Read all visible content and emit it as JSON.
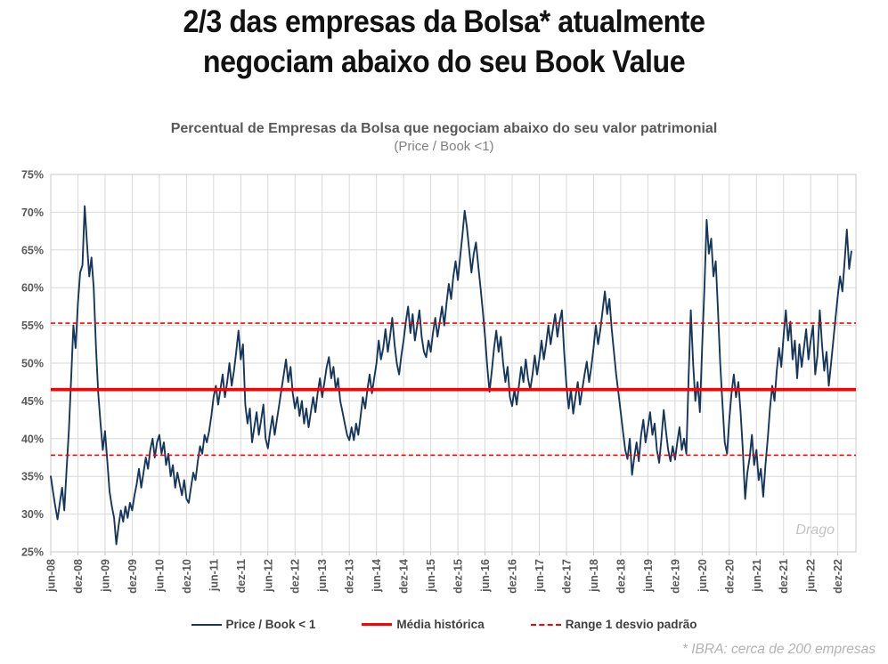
{
  "slide": {
    "title_line1": "2/3 das empresas da Bolsa* atualmente",
    "title_line2": "negociam abaixo do seu Book Value",
    "watermark": "Drago",
    "footnote": "* IBRA: cerca de 200 empresas"
  },
  "chart_data": {
    "type": "line",
    "title": "Percentual de Empresas da Bolsa que negociam abaixo do seu valor patrimonial",
    "subtitle": "(Price / Book <1)",
    "grid": true,
    "legend_position": "bottom",
    "y_axis": {
      "min": 25,
      "max": 75,
      "step": 5,
      "tick_labels": [
        "25%",
        "30%",
        "35%",
        "40%",
        "45%",
        "50%",
        "55%",
        "60%",
        "65%",
        "70%",
        "75%"
      ]
    },
    "x_axis": {
      "months_per_tick": 6,
      "total_months": 178,
      "tick_labels": [
        "jun-08",
        "dez-08",
        "jun-09",
        "dez-09",
        "jun-10",
        "dez-10",
        "jun-11",
        "dez-11",
        "jun-12",
        "dez-12",
        "jun-13",
        "dez-13",
        "jun-14",
        "dez-14",
        "jun-15",
        "dez-15",
        "jun-16",
        "dez-16",
        "jun-17",
        "dez-17",
        "jun-18",
        "dez-18",
        "jun-19",
        "dez-19",
        "jun-20",
        "dez-20",
        "jun-21",
        "dez-21",
        "jun-22",
        "dez-22"
      ]
    },
    "series": [
      {
        "name": "Price / Book < 1",
        "color": "#16365C",
        "start": "jun-08",
        "points_per_month": 2,
        "values": [
          35,
          33,
          31,
          29.3,
          31.5,
          33.5,
          30.5,
          36,
          41,
          48,
          55,
          52,
          58,
          62,
          63,
          70.8,
          66,
          61.5,
          64,
          60,
          52,
          46,
          42,
          38.5,
          41,
          37,
          33,
          31,
          29.5,
          26,
          28.5,
          30.5,
          29,
          31,
          29.5,
          31.5,
          30.5,
          32.5,
          34,
          36,
          33.5,
          35.5,
          37.5,
          36,
          38.5,
          40,
          37.5,
          39.5,
          40.5,
          38,
          39.5,
          36.5,
          38,
          35,
          36.5,
          33.5,
          35.5,
          34,
          32.5,
          34.5,
          32,
          31.5,
          33.5,
          35.5,
          34.5,
          37,
          39,
          38,
          40.5,
          39.5,
          41,
          43,
          45.5,
          47,
          44.5,
          46.5,
          48.5,
          45.5,
          47.5,
          50,
          47,
          49,
          51.5,
          54.3,
          50.5,
          52.5,
          44.5,
          42,
          44,
          39.5,
          41.5,
          43.5,
          40.5,
          42.5,
          44.5,
          40,
          38.7,
          41,
          43,
          40.5,
          42.5,
          44.5,
          46.5,
          48.5,
          50.5,
          47.5,
          49.5,
          46,
          44,
          45.5,
          43,
          45,
          42,
          44,
          41.5,
          43.5,
          45.5,
          43.5,
          46,
          48,
          45.5,
          47.5,
          49.5,
          50.8,
          48,
          49.5,
          46.5,
          48,
          45,
          43.5,
          42,
          40.5,
          39.8,
          41.5,
          39.8,
          42,
          40.5,
          43,
          45.5,
          44,
          46.5,
          48.5,
          46,
          48,
          50,
          53,
          50.5,
          52,
          54.5,
          51.5,
          53.5,
          56,
          52.5,
          50,
          48.5,
          51,
          53,
          55.5,
          57.5,
          54,
          56.5,
          53,
          55,
          57,
          53.5,
          51.5,
          50.8,
          53,
          51.5,
          54,
          56,
          53.5,
          55.5,
          57.5,
          55,
          58,
          60.5,
          58.5,
          61.5,
          63.5,
          61,
          64,
          67,
          70.2,
          68,
          65,
          62,
          64.5,
          66,
          63,
          60,
          57,
          53.5,
          49.5,
          46.2,
          49,
          52,
          54.3,
          51.5,
          53.5,
          50,
          47.5,
          49.5,
          45.5,
          44.3,
          46.5,
          44.5,
          47,
          49.5,
          47.5,
          50.5,
          48,
          46.5,
          48.5,
          51,
          48.5,
          50.5,
          53,
          50.5,
          52.5,
          55,
          52.5,
          54.5,
          56.5,
          53.5,
          55.5,
          57,
          51.5,
          47,
          44,
          46.5,
          43.3,
          45.5,
          47.5,
          44.5,
          46.5,
          48.5,
          50.2,
          47.5,
          49.5,
          52,
          55,
          52.5,
          54.5,
          57,
          59.5,
          56.5,
          58.5,
          54.5,
          51.5,
          48.5,
          46,
          43.5,
          41,
          38.5,
          37.3,
          40,
          35.2,
          37.5,
          39.5,
          37,
          40.5,
          42.5,
          39.5,
          41.5,
          43.5,
          40.5,
          42,
          38.5,
          36.8,
          40,
          43.8,
          41,
          38.5,
          37,
          39,
          37.2,
          39.5,
          41.5,
          38.5,
          40,
          38,
          48,
          57,
          50,
          45,
          47.5,
          43.5,
          52,
          60,
          69,
          64.5,
          66.5,
          61.5,
          63.5,
          57,
          50,
          44.5,
          39.5,
          38,
          42.5,
          46,
          48.5,
          45.5,
          47.5,
          43.5,
          38.5,
          32,
          35.5,
          37.5,
          40.5,
          36.5,
          38.5,
          34.5,
          36,
          32.3,
          36.5,
          40,
          44,
          47,
          45,
          49,
          52,
          49.5,
          53.5,
          57,
          53,
          55.5,
          50.5,
          53,
          48,
          52.5,
          49.5,
          52,
          54.5,
          50.5,
          53,
          55,
          48.5,
          51,
          57,
          52.5,
          49,
          51.5,
          47,
          50,
          53,
          56,
          59,
          61.5,
          59.5,
          63.5,
          67.7,
          62.5,
          64.8
        ]
      }
    ],
    "reference_lines": [
      {
        "name": "Média histórica",
        "value": 46.5,
        "color": "#FF0000",
        "style": "solid"
      },
      {
        "name": "Range 1 desvio padrão (superior)",
        "value": 55.3,
        "color": "#FF0000",
        "style": "dashed"
      },
      {
        "name": "Range 1 desvio padrão (inferior)",
        "value": 37.8,
        "color": "#FF0000",
        "style": "dashed"
      }
    ],
    "legend": [
      {
        "label": "Price / Book < 1"
      },
      {
        "label": "Média histórica"
      },
      {
        "label": "Range 1 desvio padrão"
      }
    ]
  }
}
